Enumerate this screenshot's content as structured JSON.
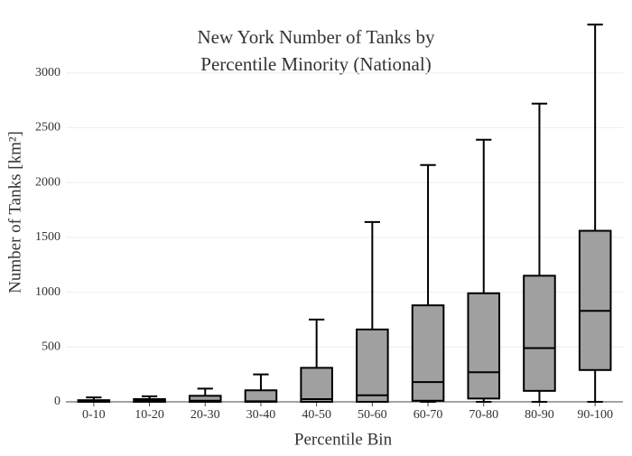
{
  "chart_data": {
    "type": "box",
    "title": [
      "New York Number of Tanks by",
      "Percentile Minority (National)"
    ],
    "x_label": "Percentile Bin",
    "y_label": "Number of Tanks  [km²]",
    "categories": [
      "0-10",
      "10-20",
      "20-30",
      "30-40",
      "40-50",
      "50-60",
      "60-70",
      "70-80",
      "80-90",
      "90-100"
    ],
    "min": [
      0,
      0,
      0,
      0,
      0,
      0,
      0,
      0,
      0,
      0
    ],
    "q1": [
      0,
      0,
      0,
      0,
      0,
      0,
      10,
      30,
      100,
      290
    ],
    "median": [
      5,
      10,
      10,
      5,
      25,
      60,
      180,
      270,
      490,
      830
    ],
    "q3": [
      15,
      25,
      55,
      105,
      310,
      660,
      880,
      990,
      1150,
      1560
    ],
    "max": [
      40,
      50,
      120,
      250,
      750,
      1640,
      2160,
      2390,
      2720,
      3440
    ],
    "color": "#a0a0a0",
    "ylim": [
      0,
      3500
    ],
    "yticks": [
      0,
      500,
      1000,
      1500,
      2000,
      2500,
      3000
    ],
    "grid": true
  }
}
